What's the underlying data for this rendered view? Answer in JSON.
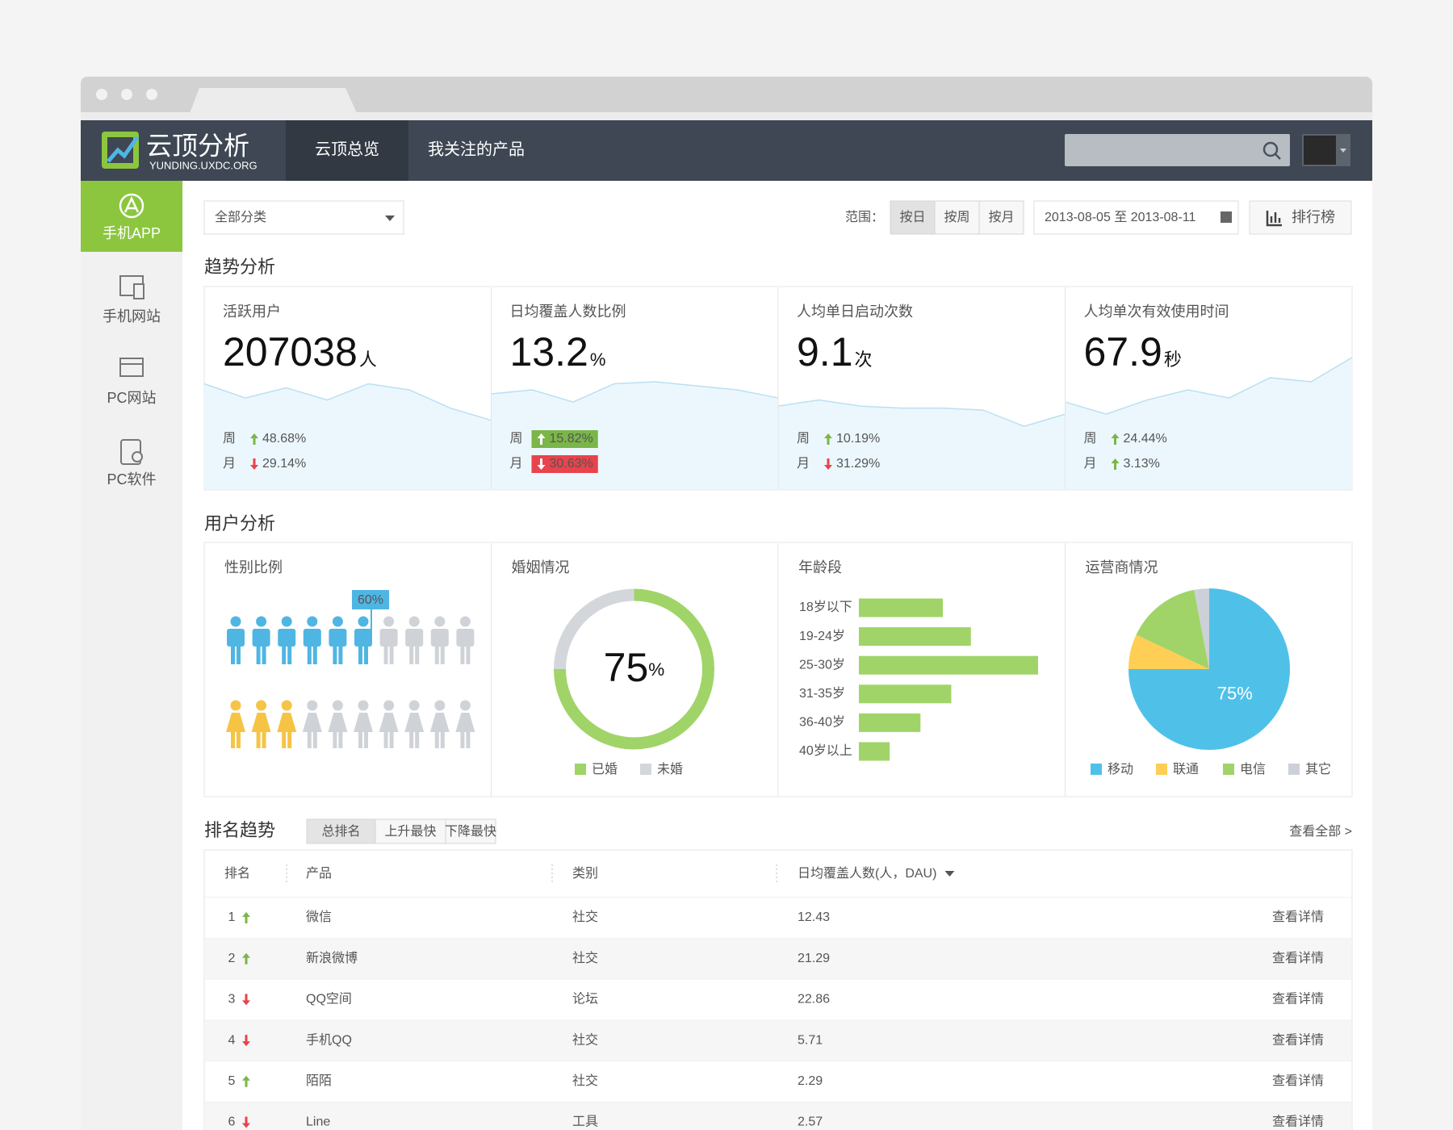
{
  "header": {
    "logo": "云顶分析",
    "logo_sub": "YUNDING.UXDC.ORG",
    "nav": [
      "云顶总览",
      "我关注的产品"
    ]
  },
  "sidebar": [
    "手机APP",
    "手机网站",
    "PC网站",
    "PC软件"
  ],
  "toolbar": {
    "category": "全部分类",
    "range_label": "范围：",
    "range_options": [
      "按日",
      "按周",
      "按月"
    ],
    "date_range": "2013-08-05 至 2013-08-11",
    "ranking": "排行榜"
  },
  "trend": {
    "title": "趋势分析",
    "cards": [
      {
        "label": "活跃用户",
        "value": 207038,
        "unit": "人",
        "week": {
          "label": "周",
          "change": "48.68%",
          "direction": "up",
          "highlight": false
        },
        "month": {
          "label": "月",
          "change": "29.14%",
          "direction": "down",
          "highlight": false
        },
        "sparkline": {
          "values": [
            52,
            45,
            50,
            44,
            52,
            49,
            40,
            34
          ],
          "ylim": [
            0,
            100
          ]
        }
      },
      {
        "label": "日均覆盖人数比例",
        "value": 13.2,
        "unit": "%",
        "week": {
          "label": "周",
          "change": "15.82%",
          "direction": "up",
          "highlight": true
        },
        "month": {
          "label": "月",
          "change": "30.63%",
          "direction": "down",
          "highlight": true
        },
        "sparkline": {
          "values": [
            47,
            49,
            43,
            52,
            53,
            51,
            49,
            45
          ],
          "ylim": [
            0,
            100
          ]
        }
      },
      {
        "label": "人均单日启动次数",
        "value": 9.1,
        "unit": "次",
        "week": {
          "label": "周",
          "change": "10.19%",
          "direction": "up",
          "highlight": false
        },
        "month": {
          "label": "月",
          "change": "31.29%",
          "direction": "down",
          "highlight": false
        },
        "sparkline": {
          "values": [
            41,
            44,
            41,
            40,
            40,
            39,
            31,
            37
          ],
          "ylim": [
            0,
            100
          ]
        }
      },
      {
        "label": "人均单次有效使用时间",
        "value": 67.9,
        "unit": "秒",
        "week": {
          "label": "周",
          "change": "24.44%",
          "direction": "up",
          "highlight": false
        },
        "month": {
          "label": "月",
          "change": "3.13%",
          "direction": "up",
          "highlight": false
        },
        "sparkline": {
          "values": [
            43,
            37,
            44,
            49,
            45,
            55,
            53,
            65
          ],
          "ylim": [
            0,
            100
          ]
        }
      }
    ]
  },
  "users": {
    "title": "用户分析"
  },
  "chart_data": [
    {
      "type": "pictogram",
      "title": "性别比例",
      "values": [
        60,
        30
      ],
      "value_labels": [
        "60%",
        null
      ],
      "colors": [
        "#4fb6e3",
        "#f6c445"
      ],
      "inactive_color": "#cfd3d8"
    },
    {
      "type": "donut",
      "title": "婚姻情况",
      "categories": [
        "已婚",
        "未婚"
      ],
      "values": [
        75,
        25
      ],
      "value_labels": [
        "75%",
        null
      ],
      "colors": [
        "#a0d468",
        "#d3d7dc"
      ]
    },
    {
      "type": "hbar",
      "title": "年龄段",
      "categories": [
        "18岁以下",
        "19-24岁",
        "25-30岁",
        "31-35岁",
        "36-40岁",
        "40岁以上"
      ],
      "values": [
        15,
        20,
        32,
        16.5,
        11,
        5.5
      ],
      "color": "#a0d468"
    },
    {
      "type": "pie",
      "title": "运营商情况",
      "categories": [
        "移动",
        "联通",
        "电信",
        "其它"
      ],
      "values": [
        75,
        7,
        15,
        3
      ],
      "value_labels": [
        "75%",
        null,
        null,
        null
      ],
      "colors": [
        "#4fc1e9",
        "#ffce54",
        "#a0d468",
        "#ccd1d9"
      ]
    }
  ],
  "ranking": {
    "title": "排名趋势",
    "tabs": [
      "总排名",
      "上升最快",
      "下降最快"
    ],
    "view_all": "查看全部 >",
    "columns": [
      "排名",
      "产品",
      "类别",
      "日均覆盖人数(人，DAU)"
    ],
    "rows": [
      {
        "rank": 1,
        "direction": "up",
        "product": "微信",
        "category": "社交",
        "dau": 12.43,
        "action": "查看详情"
      },
      {
        "rank": 2,
        "direction": "up",
        "product": "新浪微博",
        "category": "社交",
        "dau": 21.29,
        "action": "查看详情"
      },
      {
        "rank": 3,
        "direction": "down",
        "product": "QQ空间",
        "category": "论坛",
        "dau": 22.86,
        "action": "查看详情"
      },
      {
        "rank": 4,
        "direction": "down",
        "product": "手机QQ",
        "category": "社交",
        "dau": 5.71,
        "action": "查看详情"
      },
      {
        "rank": 5,
        "direction": "up",
        "product": "陌陌",
        "category": "社交",
        "dau": 2.29,
        "action": "查看详情"
      },
      {
        "rank": 6,
        "direction": "down",
        "product": "Line",
        "category": "工具",
        "dau": 2.57,
        "action": "查看详情"
      }
    ]
  }
}
